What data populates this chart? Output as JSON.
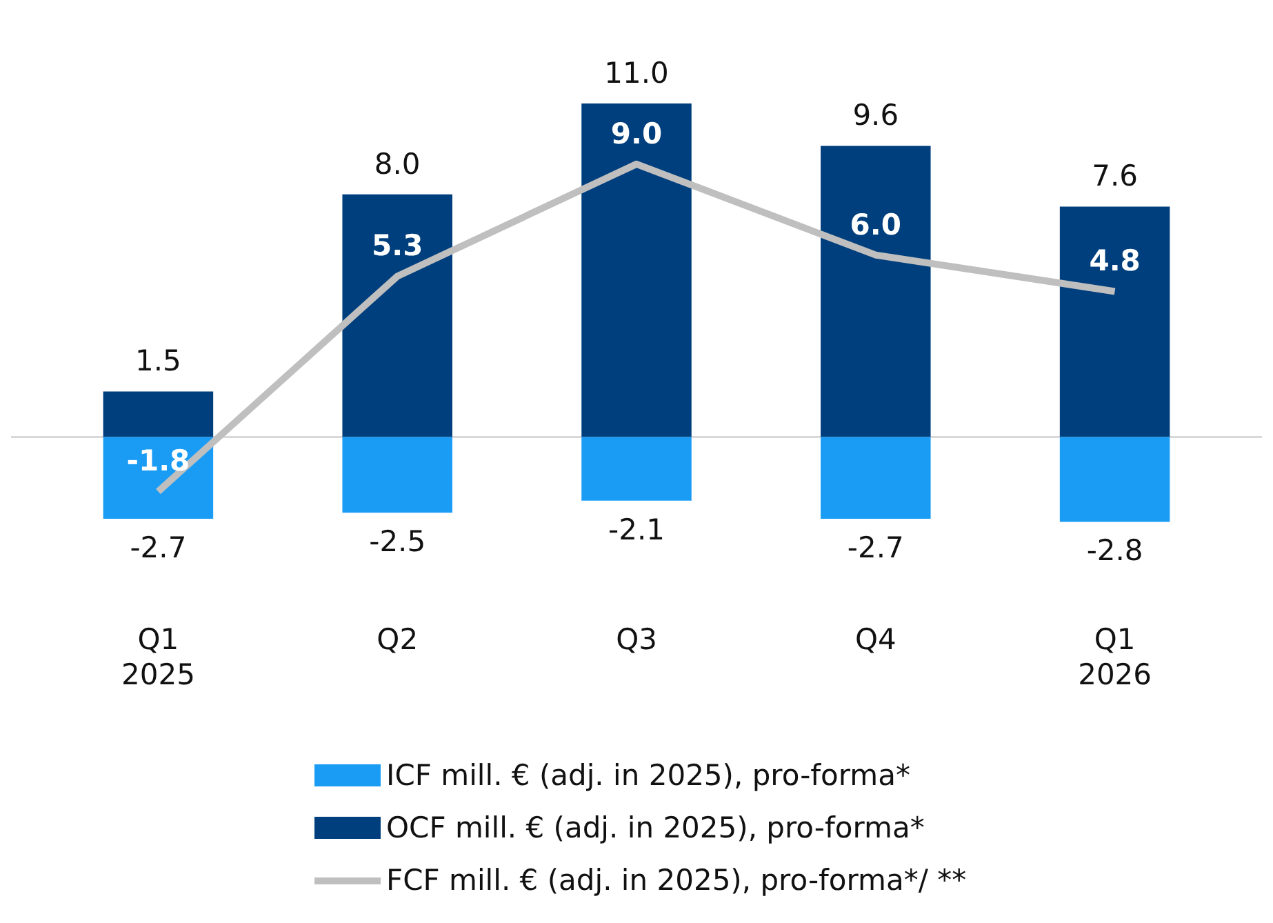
{
  "chart_data": {
    "type": "bar",
    "stacked": true,
    "categories": [
      "Q1 2025",
      "Q2",
      "Q3",
      "Q4",
      "Q1 2026"
    ],
    "series": [
      {
        "name": "ICF mill. € (adj. in 2025), pro-forma*",
        "color": "#1a9cf5",
        "values": [
          -2.7,
          -2.5,
          -2.1,
          -2.7,
          -2.8
        ],
        "value_labels": [
          "-2.7",
          "-2.5",
          "-2.1",
          "-2.7",
          "-2.8"
        ]
      },
      {
        "name": "OCF mill. € (adj. in 2025), pro-forma*",
        "color": "#003f7d",
        "values": [
          1.5,
          8.0,
          11.0,
          9.6,
          7.6
        ],
        "value_labels": [
          "1.5",
          "8.0",
          "11.0",
          "9.6",
          "7.6"
        ]
      },
      {
        "name": "FCF mill. € (adj. in 2025), pro-forma*/ **",
        "type": "line",
        "color": "#bfbfbf",
        "values": [
          -1.8,
          5.3,
          9.0,
          6.0,
          4.8
        ],
        "value_labels": [
          "-1.8",
          "5.3",
          "9.0",
          "6.0",
          "4.8"
        ]
      }
    ],
    "legend": "bottom",
    "grid": false
  }
}
